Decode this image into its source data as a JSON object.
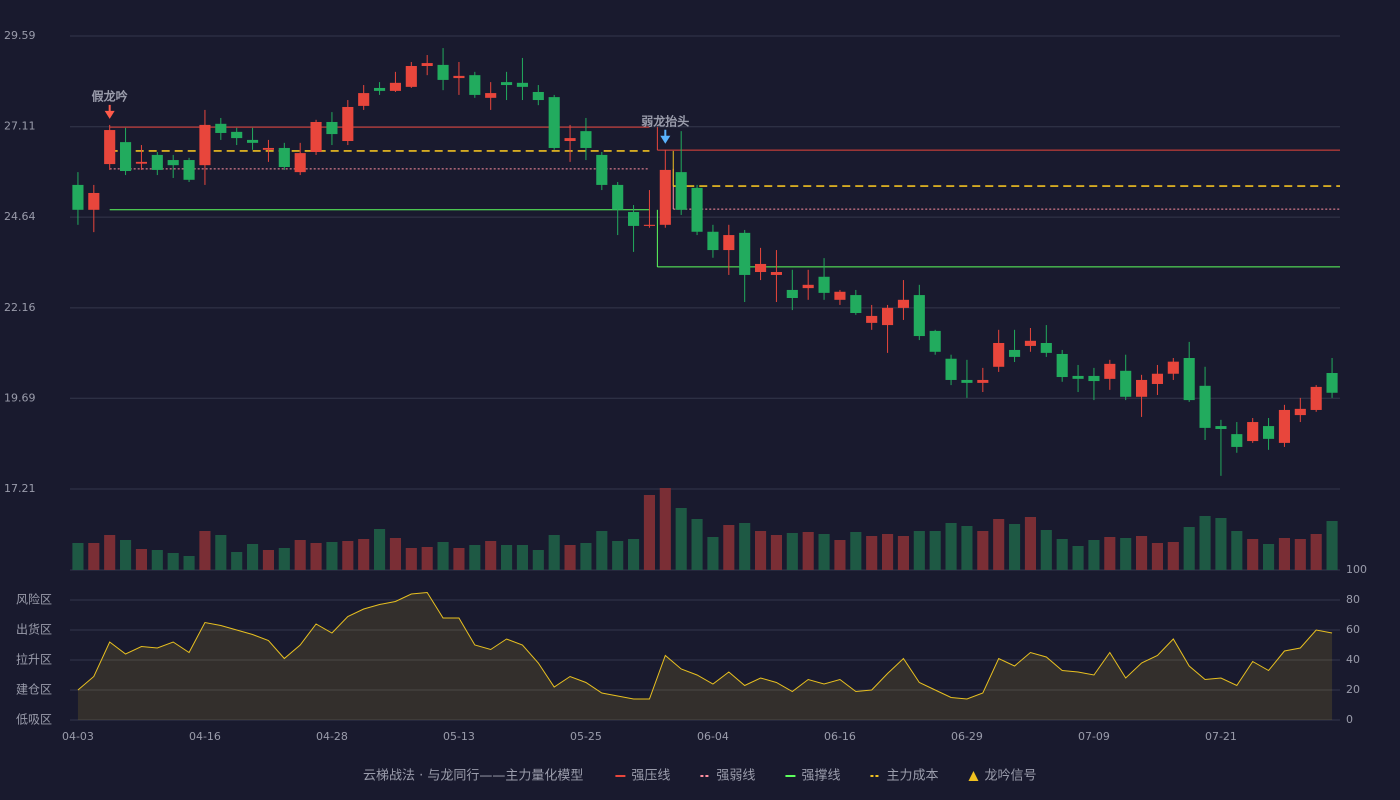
{
  "chart_data": {
    "type": "candlestick",
    "categories": [
      "04-03",
      null,
      null,
      null,
      null,
      null,
      null,
      null,
      "04-16",
      null,
      null,
      null,
      null,
      null,
      null,
      null,
      "04-28",
      null,
      null,
      null,
      null,
      null,
      null,
      null,
      "05-13",
      null,
      null,
      null,
      null,
      null,
      null,
      null,
      "05-25",
      null,
      null,
      null,
      null,
      null,
      null,
      null,
      "06-04",
      null,
      null,
      null,
      null,
      null,
      null,
      null,
      "06-16",
      null,
      null,
      null,
      null,
      null,
      null,
      null,
      "06-29",
      null,
      null,
      null,
      null,
      null,
      null,
      null,
      "07-09",
      null,
      null,
      null,
      null,
      null,
      null,
      null,
      "07-21",
      null,
      null,
      null,
      null,
      null,
      null,
      null
    ],
    "open": [
      25.52,
      24.84,
      26.09,
      26.69,
      26.1,
      26.34,
      26.2,
      26.2,
      26.06,
      27.19,
      26.97,
      26.75,
      26.48,
      26.53,
      25.87,
      26.42,
      27.24,
      26.72,
      27.68,
      28.17,
      28.09,
      28.2,
      28.77,
      28.8,
      28.44,
      28.52,
      27.9,
      28.33,
      28.31,
      28.06,
      27.92,
      26.72,
      26.99,
      26.34,
      25.52,
      24.78,
      24.4,
      24.43,
      25.87,
      25.44,
      24.24,
      23.74,
      24.21,
      23.14,
      23.06,
      22.65,
      22.7,
      23.01,
      22.38,
      22.51,
      21.75,
      21.69,
      22.16,
      22.51,
      21.53,
      20.77,
      20.19,
      20.11,
      20.55,
      21.01,
      21.12,
      21.2,
      20.9,
      20.3,
      20.3,
      20.22,
      20.44,
      19.73,
      20.08,
      20.36,
      20.79,
      20.03,
      18.93,
      18.71,
      18.52,
      18.93,
      18.47,
      19.23,
      19.37,
      20.38
    ],
    "high": [
      25.87,
      25.52,
      27.16,
      27.08,
      26.61,
      26.42,
      26.34,
      26.26,
      27.57,
      27.35,
      27.08,
      27.08,
      26.75,
      26.67,
      26.67,
      27.3,
      27.51,
      27.84,
      28.25,
      28.33,
      28.61,
      28.88,
      29.07,
      29.26,
      28.88,
      28.61,
      28.33,
      28.61,
      28.99,
      28.25,
      27.98,
      27.16,
      27.35,
      26.42,
      25.6,
      24.97,
      25.38,
      26.48,
      26.99,
      25.52,
      24.43,
      24.43,
      24.29,
      23.8,
      23.74,
      23.2,
      23.2,
      23.52,
      22.65,
      22.65,
      22.24,
      22.24,
      22.92,
      22.79,
      21.56,
      20.88,
      20.74,
      20.52,
      21.56,
      21.56,
      21.61,
      21.69,
      21.01,
      20.6,
      20.52,
      20.74,
      20.88,
      20.33,
      20.6,
      20.79,
      21.23,
      20.55,
      19.1,
      19.04,
      19.15,
      19.15,
      19.51,
      19.7,
      20.05,
      20.79
    ],
    "low": [
      24.43,
      24.23,
      25.93,
      25.79,
      25.93,
      25.79,
      25.71,
      25.6,
      25.52,
      26.75,
      26.61,
      26.48,
      26.15,
      25.93,
      25.79,
      26.34,
      26.61,
      26.61,
      27.57,
      27.98,
      28.06,
      28.17,
      28.52,
      28.11,
      27.98,
      27.9,
      27.57,
      27.84,
      27.84,
      27.7,
      26.48,
      26.15,
      26.2,
      25.38,
      24.15,
      23.69,
      24.35,
      24.35,
      24.7,
      24.15,
      23.53,
      23.06,
      22.32,
      22.92,
      22.32,
      22.1,
      22.38,
      22.38,
      22.24,
      21.97,
      21.56,
      20.93,
      21.83,
      21.28,
      20.88,
      20.05,
      19.7,
      19.86,
      20.41,
      20.68,
      20.96,
      20.82,
      20.14,
      19.86,
      19.64,
      19.92,
      19.64,
      19.18,
      19.78,
      20.19,
      19.59,
      18.55,
      17.57,
      18.2,
      18.47,
      18.28,
      18.36,
      19.04,
      19.32,
      19.7
    ],
    "close": [
      24.84,
      25.3,
      27.02,
      25.9,
      26.15,
      25.93,
      26.06,
      25.66,
      27.16,
      26.94,
      26.8,
      26.67,
      26.53,
      26.01,
      26.39,
      27.24,
      26.91,
      27.65,
      28.03,
      28.09,
      28.31,
      28.77,
      28.85,
      28.39,
      28.5,
      27.98,
      28.03,
      28.25,
      28.2,
      27.84,
      26.53,
      26.8,
      26.53,
      25.52,
      24.84,
      24.4,
      24.43,
      25.93,
      24.84,
      24.24,
      23.74,
      24.15,
      23.06,
      23.36,
      23.14,
      22.43,
      22.79,
      22.57,
      22.6,
      22.02,
      21.94,
      22.16,
      22.38,
      21.39,
      20.96,
      20.19,
      20.11,
      20.19,
      21.2,
      20.82,
      21.26,
      20.93,
      20.27,
      20.22,
      20.16,
      20.63,
      19.73,
      20.19,
      20.36,
      20.69,
      19.64,
      18.88,
      18.85,
      18.36,
      19.04,
      18.58,
      19.37,
      19.4,
      20.0,
      19.84
    ],
    "up_color": "#e8463c",
    "down_color": "#22ab5e",
    "ylim": [
      17.21,
      29.59
    ],
    "yticks": [
      17.21,
      19.69,
      22.16,
      24.64,
      27.11,
      29.59
    ],
    "grid": true,
    "volume": [
      27,
      27,
      35,
      30,
      21,
      20,
      17,
      14,
      39,
      35,
      18,
      26,
      20,
      22,
      30,
      27,
      28,
      29,
      31,
      41,
      32,
      22,
      23,
      28,
      22,
      25,
      29,
      25,
      25,
      20,
      35,
      25,
      27,
      39,
      29,
      31,
      75,
      82,
      62,
      51,
      33,
      45,
      47,
      39,
      35,
      37,
      38,
      36,
      30,
      38,
      34,
      36,
      34,
      39,
      39,
      47,
      44,
      39,
      51,
      46,
      53,
      40,
      31,
      24,
      30,
      33,
      32,
      34,
      27,
      28,
      43,
      54,
      52,
      39,
      31,
      26,
      32,
      31,
      36,
      49
    ],
    "volume_up_color": "#7a2e35",
    "volume_down_color": "#1e5944",
    "levels": [
      {
        "name": "强压线",
        "color": "#e8463c",
        "style": "solid",
        "segments": [
          {
            "start": 2,
            "end": 36,
            "value": 27.1
          },
          {
            "start": 37,
            "end": 79,
            "value": 26.47
          }
        ]
      },
      {
        "name": "强弱线",
        "color": "#ff8fa0",
        "style": "dotted",
        "segments": [
          {
            "start": 2,
            "end": 36,
            "value": 25.96
          },
          {
            "start": 38,
            "end": 79,
            "value": 24.86
          }
        ]
      },
      {
        "name": "强撑线",
        "color": "#5dff5d",
        "style": "solid",
        "segments": [
          {
            "start": 2,
            "end": 36,
            "value": 24.84
          },
          {
            "start": 37,
            "end": 79,
            "value": 23.28
          }
        ]
      },
      {
        "name": "主力成本",
        "color": "#f0c020",
        "style": "dashed",
        "segments": [
          {
            "start": 2,
            "end": 36,
            "value": 26.45
          },
          {
            "start": 38,
            "end": 79,
            "value": 25.49
          }
        ]
      }
    ],
    "signals": [
      {
        "label": "假龙吟",
        "index": 2,
        "color": "#ff5a4a"
      },
      {
        "label": "弱龙抬头",
        "index": 37,
        "color": "#5ab4ff"
      }
    ],
    "signal_legend": {
      "label": "龙吟信号",
      "color": "#f0c020"
    },
    "legend_title": "云梯战法 · 与龙同行——主力量化模型",
    "indicator": {
      "color": "#e8c020",
      "values": [
        20,
        29,
        52,
        44,
        49,
        48,
        52,
        45,
        65,
        63,
        60,
        57,
        53,
        41,
        50,
        64,
        58,
        69,
        74,
        77,
        79,
        84,
        85,
        68,
        68,
        50,
        47,
        54,
        50,
        38,
        22,
        29,
        25,
        18,
        16,
        14,
        14,
        43,
        34,
        30,
        24,
        32,
        23,
        28,
        25,
        19,
        27,
        24,
        27,
        19,
        20,
        31,
        41,
        25,
        20,
        15,
        14,
        18,
        41,
        36,
        45,
        42,
        33,
        32,
        30,
        45,
        28,
        38,
        43,
        54,
        36,
        27,
        28,
        23,
        39,
        33,
        46,
        48,
        60,
        58
      ],
      "ylim": [
        0,
        100
      ],
      "yticks": [
        0,
        20,
        40,
        60,
        80,
        100
      ],
      "ytick_colors": [
        "#ff4040",
        "#ff6a3a",
        "#4d9bff",
        "#e040fb",
        "#ffa030",
        "#40ff40"
      ],
      "zones": [
        {
          "label": "风险区",
          "value": 80,
          "color": "#ffa030"
        },
        {
          "label": "出货区",
          "value": 60,
          "color": "#e040fb"
        },
        {
          "label": "拉升区",
          "value": 40,
          "color": "#4d9bff"
        },
        {
          "label": "建仓区",
          "value": 20,
          "color": "#ff6a5a"
        },
        {
          "label": "低吸区",
          "value": 0,
          "color": "#ff4040"
        }
      ]
    }
  }
}
